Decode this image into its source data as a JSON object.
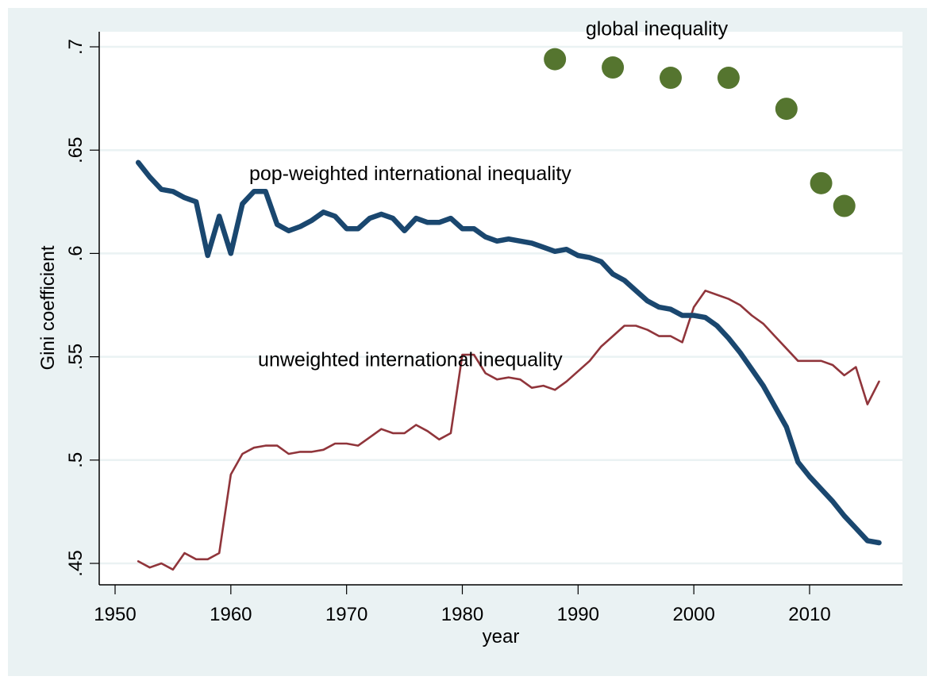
{
  "chart_data": {
    "type": "line",
    "title": "",
    "xlabel": "year",
    "ylabel": "Gini coefficient",
    "xlim": [
      1949,
      2017.5
    ],
    "ylim": [
      0.443,
      0.707
    ],
    "grid": true,
    "legend": "none (inline annotations)",
    "xticks": [
      1950,
      1960,
      1970,
      1980,
      1990,
      2000,
      2010
    ],
    "xtick_labels": [
      "1950",
      "1960",
      "1970",
      "1980",
      "1990",
      "2000",
      "2010"
    ],
    "yticks": [
      0.45,
      0.5,
      0.55,
      0.6,
      0.65,
      0.7
    ],
    "ytick_labels": [
      ".45",
      ".5",
      ".55",
      ".6",
      ".65",
      ".7"
    ],
    "colors": {
      "pop_weighted": "#1a476f",
      "unweighted": "#90353b",
      "global": "#55752f",
      "background": "#eaf2f3",
      "plot": "#ffffff",
      "grid": "#eaf2f3"
    },
    "series": [
      {
        "name": "pop-weighted international inequality",
        "kind": "line",
        "x": [
          1952,
          1953,
          1954,
          1955,
          1956,
          1957,
          1958,
          1959,
          1960,
          1961,
          1962,
          1963,
          1964,
          1965,
          1966,
          1967,
          1968,
          1969,
          1970,
          1971,
          1972,
          1973,
          1974,
          1975,
          1976,
          1977,
          1978,
          1979,
          1980,
          1981,
          1982,
          1983,
          1984,
          1985,
          1986,
          1987,
          1988,
          1989,
          1990,
          1991,
          1992,
          1993,
          1994,
          1995,
          1996,
          1997,
          1998,
          1999,
          2000,
          2001,
          2002,
          2003,
          2004,
          2005,
          2006,
          2007,
          2008,
          2009,
          2010,
          2011,
          2012,
          2013,
          2014,
          2015,
          2016
        ],
        "values": [
          0.644,
          0.637,
          0.631,
          0.63,
          0.627,
          0.625,
          0.599,
          0.618,
          0.6,
          0.624,
          0.63,
          0.63,
          0.614,
          0.611,
          0.613,
          0.616,
          0.62,
          0.618,
          0.612,
          0.612,
          0.617,
          0.619,
          0.617,
          0.611,
          0.617,
          0.615,
          0.615,
          0.617,
          0.612,
          0.612,
          0.608,
          0.606,
          0.607,
          0.606,
          0.605,
          0.603,
          0.601,
          0.602,
          0.599,
          0.598,
          0.596,
          0.59,
          0.587,
          0.582,
          0.577,
          0.574,
          0.573,
          0.57,
          0.57,
          0.569,
          0.565,
          0.559,
          0.552,
          0.544,
          0.536,
          0.526,
          0.516,
          0.499,
          0.492,
          0.486,
          0.48,
          0.473,
          0.467,
          0.461,
          0.46
        ]
      },
      {
        "name": "unweighted international inequality",
        "kind": "line",
        "x": [
          1952,
          1953,
          1954,
          1955,
          1956,
          1957,
          1958,
          1959,
          1960,
          1961,
          1962,
          1963,
          1964,
          1965,
          1966,
          1967,
          1968,
          1969,
          1970,
          1971,
          1972,
          1973,
          1974,
          1975,
          1976,
          1977,
          1978,
          1979,
          1980,
          1981,
          1982,
          1983,
          1984,
          1985,
          1986,
          1987,
          1988,
          1989,
          1990,
          1991,
          1992,
          1993,
          1994,
          1995,
          1996,
          1997,
          1998,
          1999,
          2000,
          2001,
          2002,
          2003,
          2004,
          2005,
          2006,
          2007,
          2008,
          2009,
          2010,
          2011,
          2012,
          2013,
          2014,
          2015,
          2016
        ],
        "values": [
          0.451,
          0.448,
          0.45,
          0.447,
          0.455,
          0.452,
          0.452,
          0.455,
          0.493,
          0.503,
          0.506,
          0.507,
          0.507,
          0.503,
          0.504,
          0.504,
          0.505,
          0.508,
          0.508,
          0.507,
          0.511,
          0.515,
          0.513,
          0.513,
          0.517,
          0.514,
          0.51,
          0.513,
          0.551,
          0.551,
          0.542,
          0.539,
          0.54,
          0.539,
          0.535,
          0.536,
          0.534,
          0.538,
          0.543,
          0.548,
          0.555,
          0.56,
          0.565,
          0.565,
          0.563,
          0.56,
          0.56,
          0.557,
          0.574,
          0.582,
          0.58,
          0.578,
          0.575,
          0.57,
          0.566,
          0.56,
          0.554,
          0.548,
          0.548,
          0.548,
          0.546,
          0.541,
          0.545,
          0.527,
          0.538
        ]
      },
      {
        "name": "global inequality",
        "kind": "scatter",
        "x": [
          1988,
          1993,
          1998,
          2003,
          2008,
          2011,
          2013
        ],
        "values": [
          0.694,
          0.69,
          0.685,
          0.685,
          0.67,
          0.634,
          0.623
        ]
      }
    ],
    "annotations": [
      {
        "text": "global inequality",
        "x": 1996.8,
        "y": 0.7055
      },
      {
        "text": "pop-weighted international inequality",
        "x": 1975.5,
        "y": 0.6355
      },
      {
        "text": "unweighted international inequality",
        "x": 1975.5,
        "y": 0.5455
      }
    ]
  }
}
